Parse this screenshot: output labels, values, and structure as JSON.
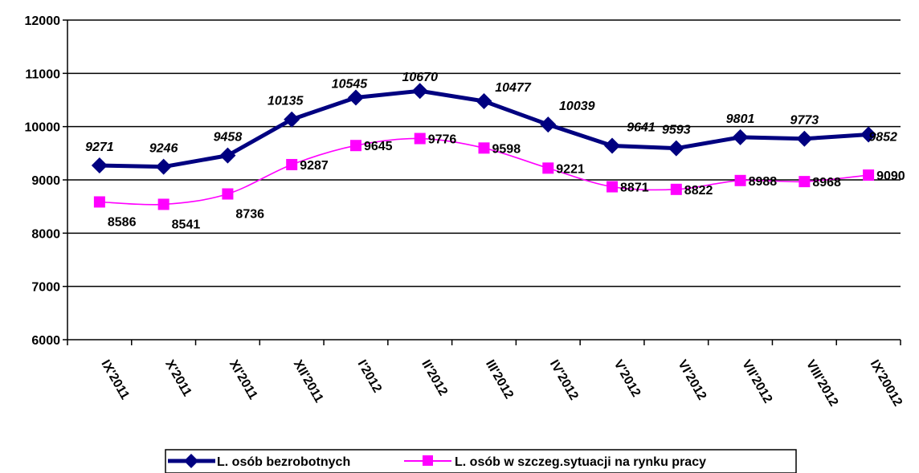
{
  "chart_data": {
    "type": "line",
    "categories": [
      "IX'2011",
      "X'2011",
      "XI'2011",
      "XII'2011",
      "I'2012",
      "II'2012",
      "III'2012",
      "IV'2012",
      "V'2012",
      "VI'2012",
      "VII'2012",
      "VIII'2012",
      "IX'20012"
    ],
    "series": [
      {
        "name": "L. osób bezrobotnych",
        "values": [
          9271,
          9246,
          9458,
          10135,
          10545,
          10670,
          10477,
          10039,
          9641,
          9593,
          9801,
          9773,
          9852
        ],
        "color": "#000080",
        "marker": "diamond"
      },
      {
        "name": "L. osób w szczeg.sytuacji na rynku pracy",
        "values": [
          8586,
          8541,
          8736,
          9287,
          9645,
          9776,
          9598,
          9221,
          8871,
          8822,
          8988,
          8968,
          9090
        ],
        "color": "#FF00FF",
        "marker": "square"
      }
    ],
    "ylim": [
      6000,
      12000
    ],
    "yticks": [
      "6000",
      "7000",
      "8000",
      "9000",
      "10000",
      "11000",
      "12000"
    ],
    "grid": true,
    "legend_position": "bottom"
  }
}
